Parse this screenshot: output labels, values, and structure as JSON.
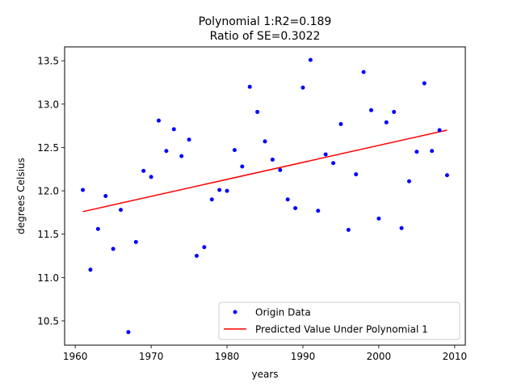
{
  "chart_data": {
    "type": "scatter",
    "title": "Polynomial 1:R2=0.189",
    "subtitle": "Ratio of SE=0.3022",
    "xlabel": "years",
    "ylabel": "degrees Celsius",
    "xlim": [
      1958.6,
      2011.4
    ],
    "ylim": [
      10.22,
      13.66
    ],
    "xticks": [
      1960,
      1970,
      1980,
      1990,
      2000,
      2010
    ],
    "yticks": [
      10.5,
      11.0,
      11.5,
      12.0,
      12.5,
      13.0,
      13.5
    ],
    "grid": false,
    "legend_position": "lower-right",
    "series": [
      {
        "name": "Origin Data",
        "kind": "scatter",
        "color": "#0000ff",
        "x": [
          1961,
          1962,
          1963,
          1964,
          1965,
          1966,
          1967,
          1968,
          1969,
          1970,
          1971,
          1972,
          1973,
          1974,
          1975,
          1976,
          1977,
          1978,
          1979,
          1980,
          1981,
          1982,
          1983,
          1984,
          1985,
          1986,
          1987,
          1988,
          1989,
          1990,
          1991,
          1992,
          1993,
          1994,
          1995,
          1996,
          1997,
          1998,
          1999,
          2000,
          2001,
          2002,
          2003,
          2004,
          2005,
          2006,
          2007,
          2008,
          2009
        ],
        "y": [
          12.01,
          11.09,
          11.56,
          11.94,
          11.33,
          11.78,
          10.37,
          11.41,
          12.23,
          12.16,
          12.81,
          12.46,
          12.71,
          12.4,
          12.59,
          11.25,
          11.35,
          11.9,
          12.01,
          12.0,
          12.47,
          12.28,
          13.2,
          12.91,
          12.57,
          12.36,
          12.24,
          11.9,
          11.8,
          13.19,
          13.51,
          11.77,
          12.42,
          12.32,
          12.77,
          11.55,
          12.19,
          13.37,
          12.93,
          11.68,
          12.79,
          12.91,
          11.57,
          12.11,
          12.45,
          13.24,
          12.46,
          12.7,
          12.18
        ]
      },
      {
        "name": "Predicted Value Under Polynomial 1",
        "kind": "line",
        "color": "#ff0000",
        "x": [
          1961,
          2009
        ],
        "y": [
          11.76,
          12.7
        ]
      }
    ]
  }
}
